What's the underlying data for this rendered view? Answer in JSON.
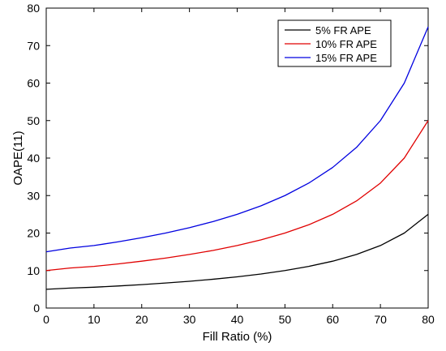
{
  "chart_data": {
    "type": "line",
    "xlabel": "Fill Ratio (%)",
    "ylabel": "OAPE(11)",
    "xlim": [
      0,
      80
    ],
    "ylim": [
      0,
      80
    ],
    "xticks": [
      0,
      10,
      20,
      30,
      40,
      50,
      60,
      70,
      80
    ],
    "yticks": [
      0,
      10,
      20,
      30,
      40,
      50,
      60,
      70,
      80
    ],
    "grid": false,
    "legend_position": "top-right",
    "x": [
      0,
      5,
      10,
      15,
      20,
      25,
      30,
      35,
      40,
      45,
      50,
      55,
      60,
      65,
      70,
      75,
      80
    ],
    "series": [
      {
        "name": "5% FR APE",
        "color": "#000000",
        "values": [
          5.0,
          5.33,
          5.56,
          5.88,
          6.25,
          6.67,
          7.14,
          7.69,
          8.33,
          9.09,
          10.0,
          11.11,
          12.5,
          14.29,
          16.67,
          20.0,
          25.0
        ]
      },
      {
        "name": "10% FR APE",
        "color": "#e00000",
        "values": [
          10.0,
          10.67,
          11.11,
          11.76,
          12.5,
          13.33,
          14.29,
          15.38,
          16.67,
          18.18,
          20.0,
          22.22,
          25.0,
          28.57,
          33.33,
          40.0,
          50.0
        ]
      },
      {
        "name": "15% FR APE",
        "color": "#0000e0",
        "values": [
          15.0,
          16.0,
          16.67,
          17.65,
          18.75,
          20.0,
          21.43,
          23.08,
          25.0,
          27.27,
          30.0,
          33.33,
          37.5,
          42.86,
          50.0,
          60.0,
          75.0
        ]
      }
    ]
  }
}
